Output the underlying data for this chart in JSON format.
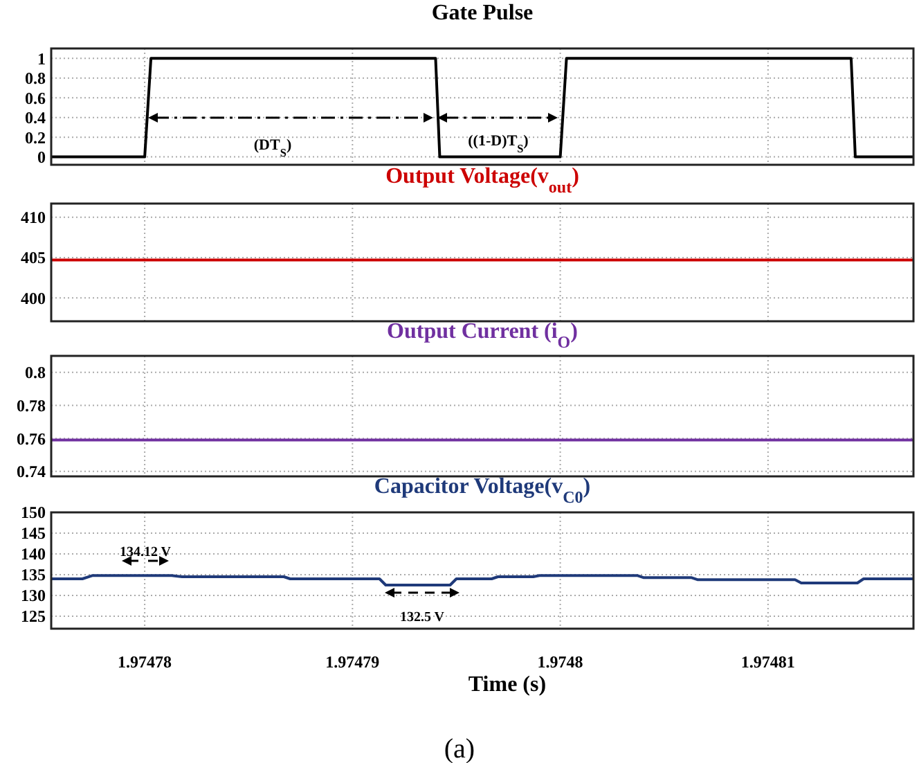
{
  "chart_data": [
    {
      "type": "line",
      "title": "Gate Pulse",
      "x": [
        1.9747755,
        1.97478,
        1.9747803,
        1.974794,
        1.9747942,
        1.9748,
        1.9748003,
        1.974814,
        1.9748142,
        1.974817
      ],
      "series": [
        {
          "color": "#000000",
          "values": [
            0,
            0,
            1,
            1,
            0,
            0,
            1,
            1,
            0,
            0
          ]
        }
      ],
      "xlim": [
        1.9747755,
        1.974817
      ],
      "xticks": [
        1.97478,
        1.97479,
        1.9748,
        1.97481
      ],
      "ylim": [
        -0.08,
        1.1
      ],
      "yticks": [
        0,
        0.2,
        0.4,
        0.6,
        0.8,
        1
      ],
      "grid": true,
      "tick_labels": "y",
      "annotations": [
        "(DT$_{S}$)",
        "((1-D)T$_{S}$)"
      ]
    },
    {
      "type": "line",
      "title": "Output Voltage(v$_{out}$)",
      "x": [
        1.9747755,
        1.974817
      ],
      "series": [
        {
          "color": "#cc0000",
          "values": [
            404.7,
            404.7
          ]
        }
      ],
      "xlim": [
        1.9747755,
        1.974817
      ],
      "xticks": [
        1.97478,
        1.97479,
        1.9748,
        1.97481
      ],
      "ylim": [
        397.1,
        411.7
      ],
      "yticks": [
        400,
        405,
        410
      ],
      "grid": true,
      "tick_labels": "y"
    },
    {
      "type": "line",
      "title": "Output Current (i$_{O}$)",
      "x": [
        1.9747755,
        1.974817
      ],
      "series": [
        {
          "color": "#7030a0",
          "values": [
            0.759,
            0.759
          ]
        }
      ],
      "xlim": [
        1.9747755,
        1.974817
      ],
      "xticks": [
        1.97478,
        1.97479,
        1.9748,
        1.97481
      ],
      "ylim": [
        0.737,
        0.81
      ],
      "yticks": [
        0.74,
        0.76,
        0.78,
        0.8
      ],
      "grid": true,
      "tick_labels": "y"
    },
    {
      "type": "line",
      "title": "Capacitor Voltage(v$_{C0}$)",
      "xlabel": "Time (s)",
      "x": [
        1.9747755,
        1.974777,
        1.9747775,
        1.9747813,
        1.9747818,
        1.9747867,
        1.974787,
        1.9747913,
        1.9747916,
        1.9747947,
        1.974795,
        1.9747967,
        1.974797,
        1.9747987,
        1.974799,
        1.9748037,
        1.974804,
        1.9748063,
        1.9748066,
        1.9748113,
        1.9748116,
        1.9748143,
        1.9748146,
        1.974817
      ],
      "series": [
        {
          "color": "#1f3a7a",
          "values": [
            134.0,
            134.0,
            134.8,
            134.8,
            134.5,
            134.5,
            134.0,
            134.0,
            132.5,
            132.5,
            134.0,
            134.0,
            134.5,
            134.5,
            134.8,
            134.8,
            134.3,
            134.3,
            133.8,
            133.8,
            133.0,
            133.0,
            134.0,
            134.0
          ]
        }
      ],
      "xlim": [
        1.9747755,
        1.974817
      ],
      "xticks": [
        1.97478,
        1.97479,
        1.9748,
        1.97481
      ],
      "ylim": [
        122,
        150
      ],
      "yticks": [
        125,
        130,
        135,
        140,
        145,
        150
      ],
      "grid": true,
      "annotations": [
        "134.12 V",
        "132.5 V",
        "(a)"
      ]
    }
  ]
}
